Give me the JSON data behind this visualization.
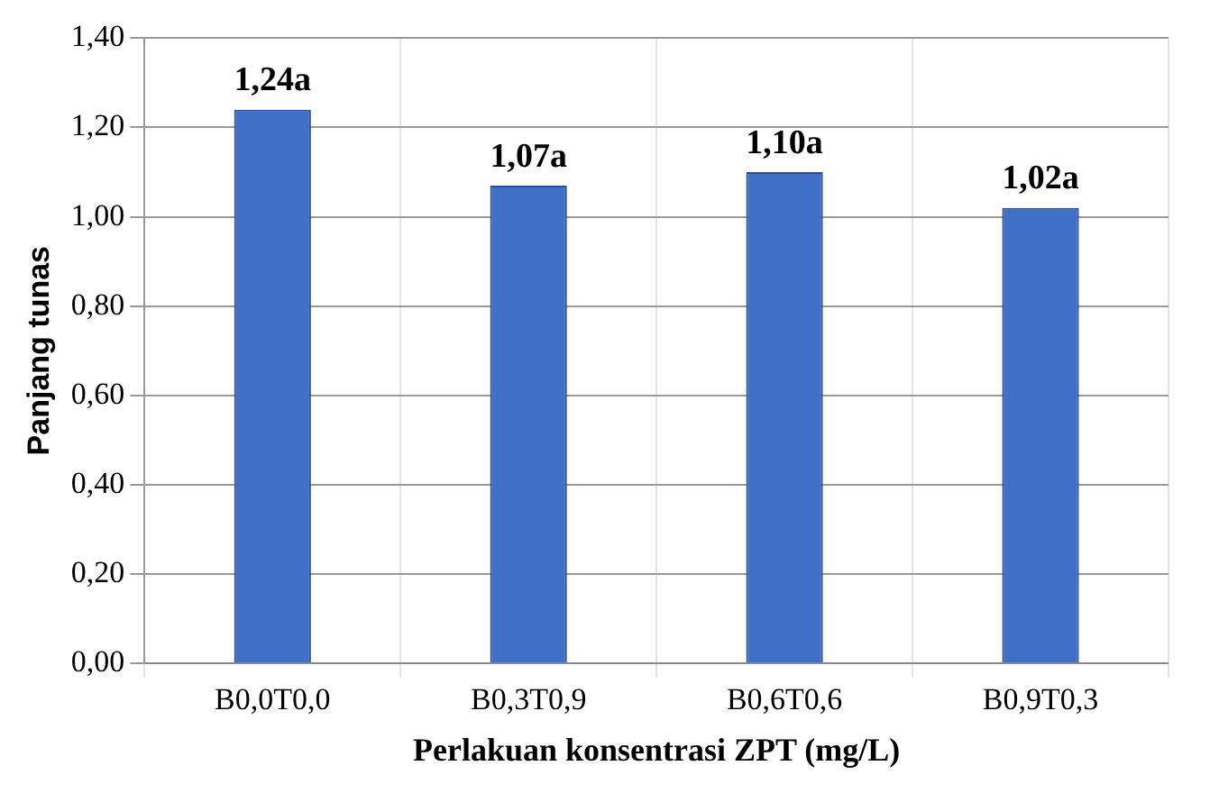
{
  "chart_data": {
    "type": "bar",
    "xlabel": "Perlakuan konsentrasi ZPT (mg/L)",
    "ylabel": "Panjang tunas",
    "categories": [
      "B0,0T0,0",
      "B0,3T0,9",
      "B0,6T0,6",
      "B0,9T0,3"
    ],
    "values": [
      1.24,
      1.07,
      1.1,
      1.02
    ],
    "color": "#3f6fc6",
    "value_labels": [
      "1,24a",
      "1,07a",
      "1,10a",
      "1,02a"
    ],
    "ylim": [
      0,
      1.4
    ],
    "yticks": [
      {
        "value": 0,
        "label": "0,00"
      },
      {
        "value": 0.2,
        "label": "0,20"
      },
      {
        "value": 0.4,
        "label": "0,40"
      },
      {
        "value": 0.6,
        "label": "0,60"
      },
      {
        "value": 0.8,
        "label": "0,80"
      },
      {
        "value": 1,
        "label": "1,00"
      },
      {
        "value": 1.2,
        "label": "1,20"
      },
      {
        "value": 1.4,
        "label": "1,40"
      }
    ],
    "grid": true,
    "legend": false
  }
}
